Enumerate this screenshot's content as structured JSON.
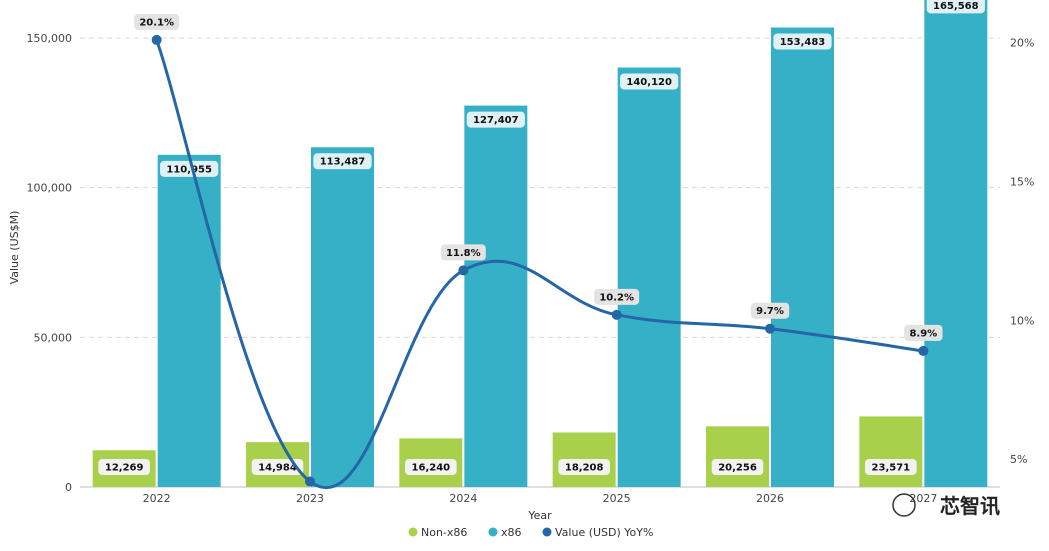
{
  "chart_data": {
    "type": "bar",
    "categories": [
      "2022",
      "2023",
      "2024",
      "2025",
      "2026",
      "2027"
    ],
    "series": [
      {
        "name": "Non-x86",
        "type": "bar",
        "axis": "left",
        "values": [
          12269,
          14984,
          16240,
          18208,
          20256,
          23571
        ],
        "labels": [
          "12,269",
          "14,984",
          "16,240",
          "18,208",
          "20,256",
          "23,571"
        ]
      },
      {
        "name": "x86",
        "type": "bar",
        "axis": "left",
        "values": [
          110955,
          113487,
          127407,
          140120,
          153483,
          165568
        ],
        "labels": [
          "110,955",
          "113,487",
          "127,407",
          "140,120",
          "153,483",
          "165,568"
        ]
      },
      {
        "name": "Value (USD) YoY%",
        "type": "line",
        "axis": "right",
        "values": [
          20.1,
          4.2,
          11.8,
          10.2,
          9.7,
          8.9
        ],
        "labels": [
          "20.1%",
          "",
          "11.8%",
          "10.2%",
          "9.7%",
          "8.9%"
        ]
      }
    ],
    "xlabel": "Year",
    "ylabel": "Value (US$M)",
    "ylim": [
      0,
      160000
    ],
    "y2lim": [
      4.0,
      21.25
    ],
    "yticks": [
      "0",
      "50,000",
      "100,000",
      "150,000"
    ],
    "y2ticks": [
      "5%",
      "10%",
      "15%",
      "20%"
    ],
    "grid": true,
    "legend_position": "bottom-center",
    "colors": {
      "Non-x86": "#a8d04a",
      "x86": "#36b0c7",
      "Value (USD) YoY%": "#2566a6"
    }
  },
  "watermark": "芯智讯"
}
